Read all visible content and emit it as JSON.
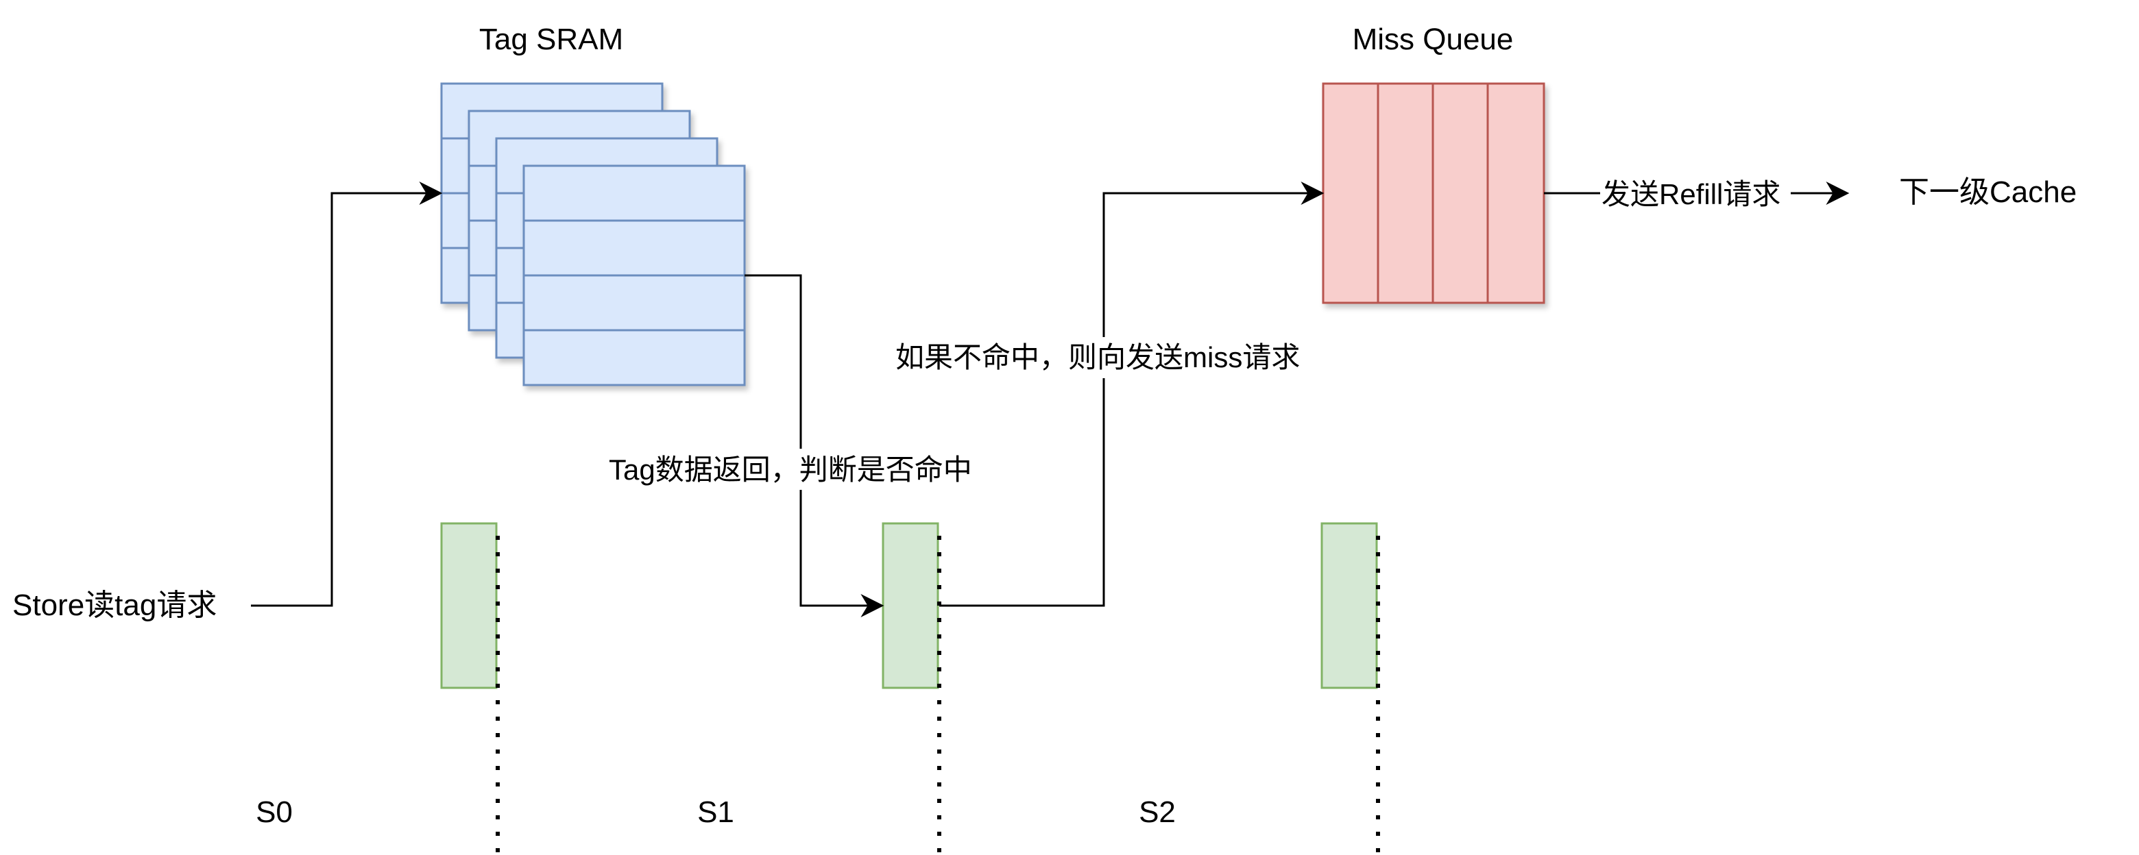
{
  "tag_sram": {
    "title": "Tag SRAM"
  },
  "miss_queue": {
    "title": "Miss Queue"
  },
  "next_level": {
    "label": "下一级Cache"
  },
  "edges": {
    "store_read": "Store读tag请求",
    "tag_return": "Tag数据返回，判断是否命中",
    "miss_request": "如果不命中，则向发送miss请求",
    "refill": "发送Refill请求"
  },
  "stages": [
    "S0",
    "S1",
    "S2"
  ],
  "colors": {
    "sram_fill": "#dae8fc",
    "sram_stroke": "#6c8ebf",
    "queue_fill": "#f8cecc",
    "queue_stroke": "#b85450",
    "reg_fill": "#d5e8d4",
    "reg_stroke": "#82b366"
  }
}
